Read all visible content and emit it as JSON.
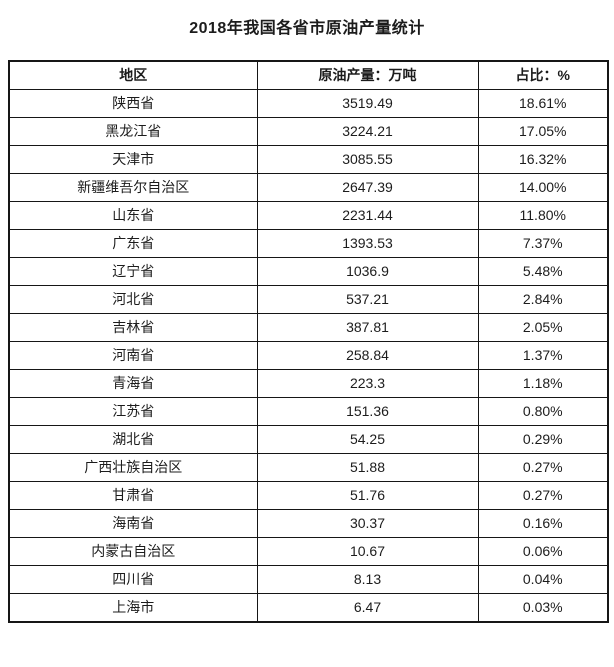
{
  "title": "2018年我国各省市原油产量统计",
  "table": {
    "headers": [
      "地区",
      "原油产量：万吨",
      "占比：%"
    ],
    "rows": [
      {
        "region": "陕西省",
        "production": "3519.49",
        "share": "18.61%"
      },
      {
        "region": "黑龙江省",
        "production": "3224.21",
        "share": "17.05%"
      },
      {
        "region": "天津市",
        "production": "3085.55",
        "share": "16.32%"
      },
      {
        "region": "新疆维吾尔自治区",
        "production": "2647.39",
        "share": "14.00%"
      },
      {
        "region": "山东省",
        "production": "2231.44",
        "share": "11.80%"
      },
      {
        "region": "广东省",
        "production": "1393.53",
        "share": "7.37%"
      },
      {
        "region": "辽宁省",
        "production": "1036.9",
        "share": "5.48%"
      },
      {
        "region": "河北省",
        "production": "537.21",
        "share": "2.84%"
      },
      {
        "region": "吉林省",
        "production": "387.81",
        "share": "2.05%"
      },
      {
        "region": "河南省",
        "production": "258.84",
        "share": "1.37%"
      },
      {
        "region": "青海省",
        "production": "223.3",
        "share": "1.18%"
      },
      {
        "region": "江苏省",
        "production": "151.36",
        "share": "0.80%"
      },
      {
        "region": "湖北省",
        "production": "54.25",
        "share": "0.29%"
      },
      {
        "region": "广西壮族自治区",
        "production": "51.88",
        "share": "0.27%"
      },
      {
        "region": "甘肃省",
        "production": "51.76",
        "share": "0.27%"
      },
      {
        "region": "海南省",
        "production": "30.37",
        "share": "0.16%"
      },
      {
        "region": "内蒙古自治区",
        "production": "10.67",
        "share": "0.06%"
      },
      {
        "region": "四川省",
        "production": "8.13",
        "share": "0.04%"
      },
      {
        "region": "上海市",
        "production": "6.47",
        "share": "0.03%"
      }
    ]
  },
  "colors": {
    "text": "#1c1c1c",
    "border": "#161616",
    "background": "#ffffff"
  }
}
